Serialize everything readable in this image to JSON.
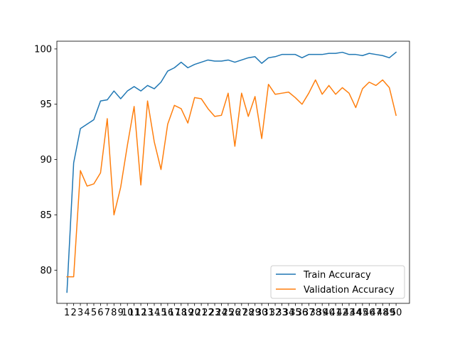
{
  "chart_data": {
    "type": "line",
    "title": "",
    "xlabel": "",
    "ylabel": "",
    "x": [
      1,
      2,
      3,
      4,
      5,
      6,
      7,
      8,
      9,
      10,
      11,
      12,
      13,
      14,
      15,
      16,
      17,
      18,
      19,
      20,
      21,
      22,
      23,
      24,
      25,
      26,
      27,
      28,
      29,
      30,
      31,
      32,
      33,
      34,
      35,
      36,
      37,
      38,
      39,
      40,
      41,
      42,
      43,
      44,
      45,
      46,
      47,
      48,
      49,
      50
    ],
    "xlim": [
      -0.5,
      52
    ],
    "ylim": [
      77.0,
      100.7
    ],
    "yticks": [
      80,
      85,
      90,
      95,
      100
    ],
    "grid": false,
    "legend_position": "lower-right",
    "series": [
      {
        "name": "Train Accuracy",
        "color": "#1f77b4",
        "values": [
          78.0,
          89.7,
          92.8,
          93.2,
          93.6,
          95.3,
          95.4,
          96.2,
          95.5,
          96.2,
          96.6,
          96.2,
          96.7,
          96.4,
          97.0,
          98.0,
          98.3,
          98.8,
          98.3,
          98.6,
          98.8,
          99.0,
          98.9,
          98.9,
          99.0,
          98.8,
          99.0,
          99.2,
          99.3,
          98.7,
          99.2,
          99.3,
          99.5,
          99.5,
          99.5,
          99.2,
          99.5,
          99.5,
          99.5,
          99.6,
          99.6,
          99.7,
          99.5,
          99.5,
          99.4,
          99.6,
          99.5,
          99.4,
          99.2,
          99.7
        ]
      },
      {
        "name": "Validation Accuracy",
        "color": "#ff7f0e",
        "values": [
          79.4,
          79.4,
          89.0,
          87.6,
          87.8,
          88.8,
          93.7,
          85.0,
          87.5,
          91.3,
          94.8,
          87.7,
          95.3,
          91.6,
          89.1,
          93.2,
          94.9,
          94.6,
          93.3,
          95.6,
          95.5,
          94.6,
          93.9,
          94.0,
          96.0,
          91.2,
          96.0,
          93.9,
          95.7,
          91.9,
          96.8,
          95.9,
          96.0,
          96.1,
          95.6,
          95.0,
          96.0,
          97.2,
          95.9,
          96.7,
          95.9,
          96.5,
          96.0,
          94.7,
          96.4,
          97.0,
          96.7,
          97.2,
          96.5,
          94.0
        ]
      }
    ]
  }
}
